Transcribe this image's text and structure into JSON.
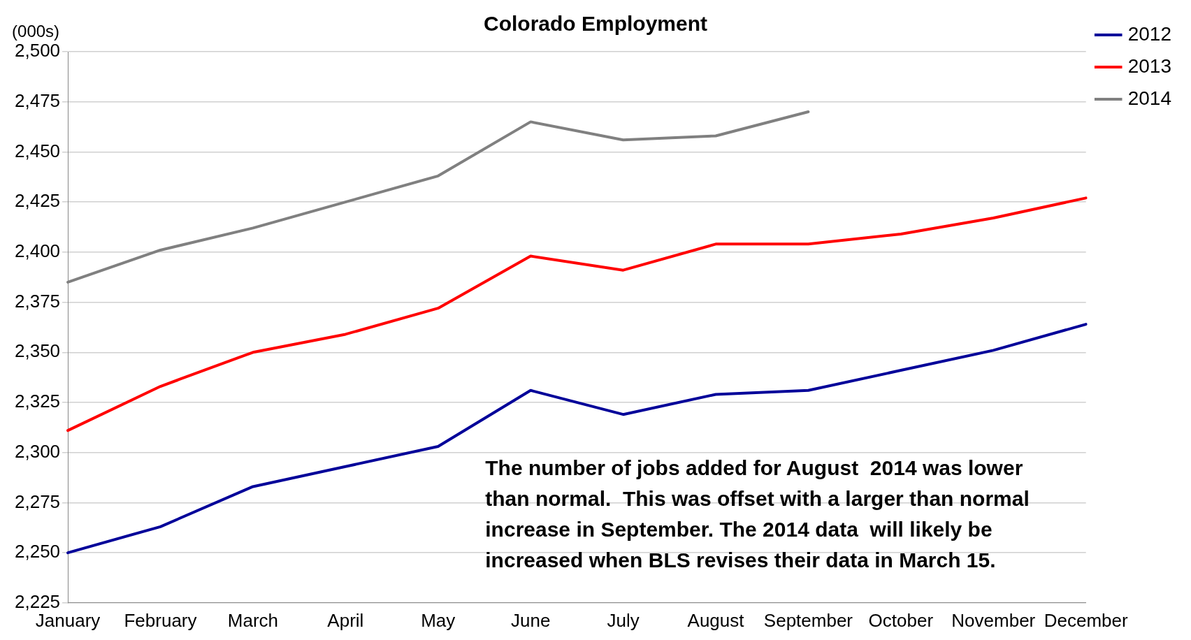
{
  "chart_data": {
    "type": "line",
    "title": "Colorado Employment",
    "ylabel": "(000s)",
    "categories": [
      "January",
      "February",
      "March",
      "April",
      "May",
      "June",
      "July",
      "August",
      "September",
      "October",
      "November",
      "December"
    ],
    "series": [
      {
        "name": "2012",
        "color": "#000099",
        "values": [
          2250,
          2263,
          2283,
          2293,
          2303,
          2331,
          2319,
          2329,
          2331,
          2341,
          2351,
          2364
        ]
      },
      {
        "name": "2013",
        "color": "#ff0000",
        "values": [
          2311,
          2333,
          2350,
          2359,
          2372,
          2398,
          2391,
          2404,
          2404,
          2409,
          2417,
          2427
        ]
      },
      {
        "name": "2014",
        "color": "#808080",
        "values": [
          2385,
          2401,
          2412,
          2425,
          2438,
          2465,
          2456,
          2458,
          2470,
          null,
          null,
          null
        ]
      }
    ],
    "ylim": [
      2225,
      2500
    ],
    "yticks": [
      {
        "value": 2225,
        "label": "2,225"
      },
      {
        "value": 2250,
        "label": "2,250"
      },
      {
        "value": 2275,
        "label": "2,275"
      },
      {
        "value": 2300,
        "label": "2,300"
      },
      {
        "value": 2325,
        "label": "2,325"
      },
      {
        "value": 2350,
        "label": "2,350"
      },
      {
        "value": 2375,
        "label": "2,375"
      },
      {
        "value": 2400,
        "label": "2,400"
      },
      {
        "value": 2425,
        "label": "2,425"
      },
      {
        "value": 2450,
        "label": "2,450"
      },
      {
        "value": 2475,
        "label": "2,475"
      },
      {
        "value": 2500,
        "label": "2,500"
      }
    ],
    "grid": "y",
    "legend": "top right",
    "marker": "none",
    "line_style": "solid",
    "annotations": [
      "The number of jobs added for August  2014 was lower than normal.  This was offset with a larger than normal increase in September. The 2014 data  will likely be increased when BLS revises their data in March 15."
    ]
  }
}
